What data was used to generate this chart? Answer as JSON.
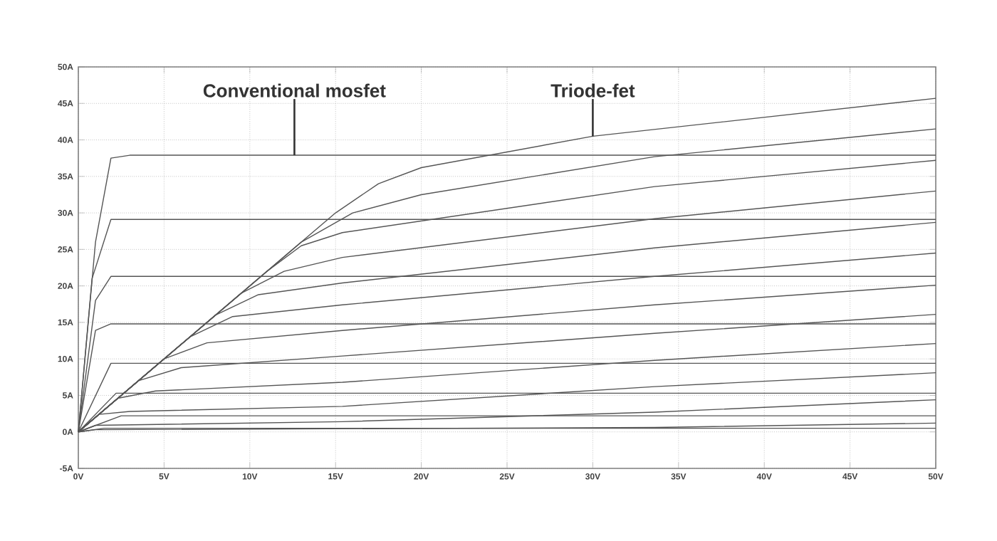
{
  "chart_data": {
    "type": "line",
    "xlim": [
      0,
      50
    ],
    "ylim": [
      -5,
      50
    ],
    "xticks": [
      {
        "value": 0,
        "label": "0V"
      },
      {
        "value": 5,
        "label": "5V"
      },
      {
        "value": 10,
        "label": "10V"
      },
      {
        "value": 15,
        "label": "15V"
      },
      {
        "value": 20,
        "label": "20V"
      },
      {
        "value": 25,
        "label": "25V"
      },
      {
        "value": 30,
        "label": "30V"
      },
      {
        "value": 35,
        "label": "35V"
      },
      {
        "value": 40,
        "label": "40V"
      },
      {
        "value": 45,
        "label": "45V"
      },
      {
        "value": 50,
        "label": "50V"
      }
    ],
    "yticks": [
      {
        "value": -5,
        "label": "-5A"
      },
      {
        "value": 0,
        "label": "0A"
      },
      {
        "value": 5,
        "label": "5A"
      },
      {
        "value": 10,
        "label": "10A"
      },
      {
        "value": 15,
        "label": "15A"
      },
      {
        "value": 20,
        "label": "20A"
      },
      {
        "value": 25,
        "label": "25A"
      },
      {
        "value": 30,
        "label": "30A"
      },
      {
        "value": 35,
        "label": "35A"
      },
      {
        "value": 40,
        "label": "40A"
      },
      {
        "value": 45,
        "label": "45A"
      },
      {
        "value": 50,
        "label": "50A"
      }
    ],
    "grid": true,
    "annotations": [
      {
        "text": "Conventional mosfet",
        "x": 12.6,
        "y": 37.9
      },
      {
        "text": "Triode-fet",
        "x": 30,
        "y": 40.5
      }
    ],
    "series": [
      {
        "color": "#555555",
        "x": [
          0,
          1,
          1.9,
          3,
          50
        ],
        "values": [
          0,
          26,
          37.5,
          37.9,
          37.9
        ]
      },
      {
        "color": "#555555",
        "x": [
          0,
          0.8,
          1.9,
          50
        ],
        "values": [
          0,
          21,
          29.1,
          29.1
        ]
      },
      {
        "color": "#555555",
        "x": [
          0,
          1,
          1.9,
          50
        ],
        "values": [
          0,
          18,
          21.3,
          21.3
        ]
      },
      {
        "color": "#555555",
        "x": [
          0,
          1,
          1.9,
          50
        ],
        "values": [
          0,
          13.9,
          14.8,
          14.8
        ]
      },
      {
        "color": "#555555",
        "x": [
          0,
          1.9,
          50
        ],
        "values": [
          0,
          9.4,
          9.4
        ]
      },
      {
        "color": "#555555",
        "x": [
          0,
          2.2,
          50
        ],
        "values": [
          0,
          5.3,
          5.3
        ]
      },
      {
        "color": "#555555",
        "x": [
          0,
          2.5,
          50
        ],
        "values": [
          0,
          2.2,
          2.2
        ]
      },
      {
        "color": "#555555",
        "x": [
          0,
          1.5,
          50
        ],
        "values": [
          0,
          0.5,
          0.5
        ]
      },
      {
        "color": "#555555",
        "x": [
          0,
          15,
          17.5,
          20,
          30,
          50
        ],
        "values": [
          0,
          30,
          34,
          36.2,
          40.5,
          45.7
        ]
      },
      {
        "color": "#555555",
        "x": [
          0,
          13,
          16,
          20,
          33.6,
          50
        ],
        "values": [
          0,
          26,
          30,
          32.5,
          37.7,
          41.5
        ]
      },
      {
        "color": "#555555",
        "x": [
          0,
          11,
          13,
          15.4,
          33.6,
          50
        ],
        "values": [
          0,
          22,
          25.5,
          27.3,
          33.6,
          37.2
        ]
      },
      {
        "color": "#555555",
        "x": [
          0,
          9.5,
          12,
          15.4,
          33.6,
          50
        ],
        "values": [
          0,
          19,
          22,
          23.9,
          29.2,
          33
        ]
      },
      {
        "color": "#555555",
        "x": [
          0,
          8,
          10.5,
          15.4,
          33.6,
          50
        ],
        "values": [
          0,
          16,
          18.8,
          20.4,
          25.2,
          28.7
        ]
      },
      {
        "color": "#555555",
        "x": [
          0,
          6.5,
          9,
          15.4,
          33.6,
          50
        ],
        "values": [
          0,
          13,
          15.8,
          17.4,
          21.3,
          24.5
        ]
      },
      {
        "color": "#555555",
        "x": [
          0,
          5,
          7.5,
          15.4,
          33.6,
          50
        ],
        "values": [
          0,
          10,
          12.2,
          13.9,
          17.4,
          20.1
        ]
      },
      {
        "color": "#555555",
        "x": [
          0,
          3.5,
          6,
          15.4,
          33.6,
          50
        ],
        "values": [
          0,
          7,
          8.8,
          10.4,
          13.5,
          16.1
        ]
      },
      {
        "color": "#555555",
        "x": [
          0,
          2.3,
          4.5,
          15.4,
          33.6,
          50
        ],
        "values": [
          0,
          4.6,
          5.6,
          6.8,
          9.8,
          12.1
        ]
      },
      {
        "color": "#555555",
        "x": [
          0,
          1.2,
          3,
          15.4,
          33.6,
          50
        ],
        "values": [
          0,
          2.4,
          2.8,
          3.5,
          6.2,
          8.1
        ]
      },
      {
        "color": "#555555",
        "x": [
          0,
          1,
          15.4,
          33.6,
          50
        ],
        "values": [
          0,
          0.9,
          1.4,
          2.7,
          4.4
        ]
      },
      {
        "color": "#555555",
        "x": [
          0,
          1,
          33.6,
          50
        ],
        "values": [
          0,
          0.3,
          0.6,
          1.2
        ]
      }
    ]
  }
}
